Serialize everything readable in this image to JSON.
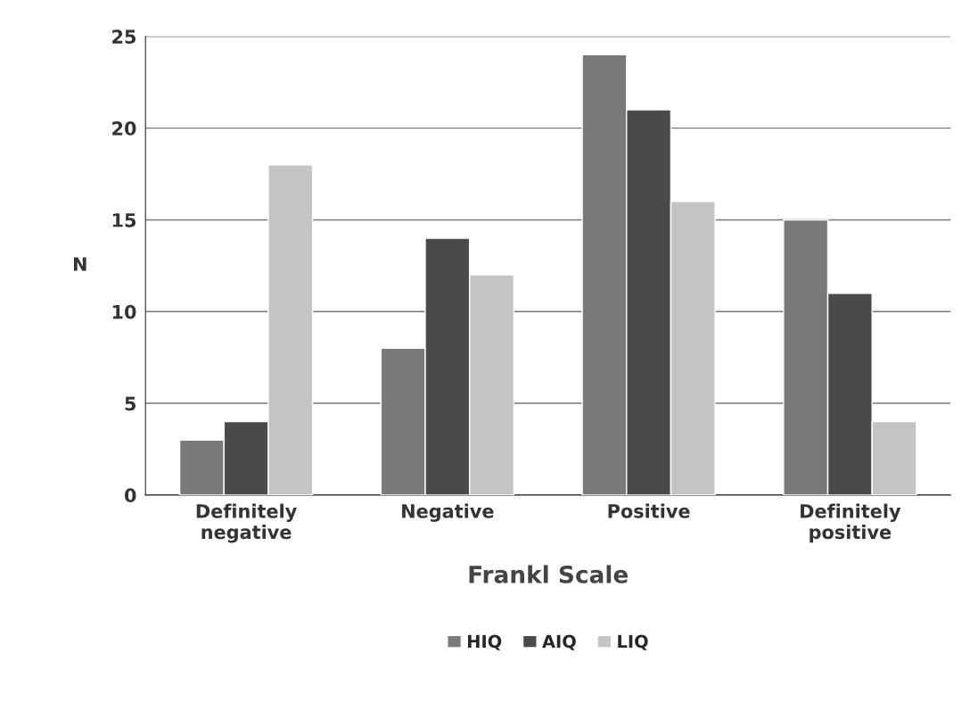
{
  "chart_data": {
    "type": "bar",
    "xlabel": "Frankl Scale",
    "ylabel": "N",
    "categories": [
      "Definitely\nnegative",
      "Negative",
      "Positive",
      "Definitely\npositive"
    ],
    "series": [
      {
        "name": "HIQ",
        "color": "#7a7a7a",
        "values": [
          3,
          8,
          24,
          15
        ]
      },
      {
        "name": "AIQ",
        "color": "#4a4a4a",
        "values": [
          4,
          14,
          21,
          11
        ]
      },
      {
        "name": "LIQ",
        "color": "#c4c4c4",
        "values": [
          18,
          12,
          16,
          4
        ]
      }
    ],
    "ylim": [
      0,
      25
    ],
    "yticks": [
      0,
      5,
      10,
      15,
      20,
      25
    ],
    "grid": "y",
    "legend": "bottom"
  }
}
